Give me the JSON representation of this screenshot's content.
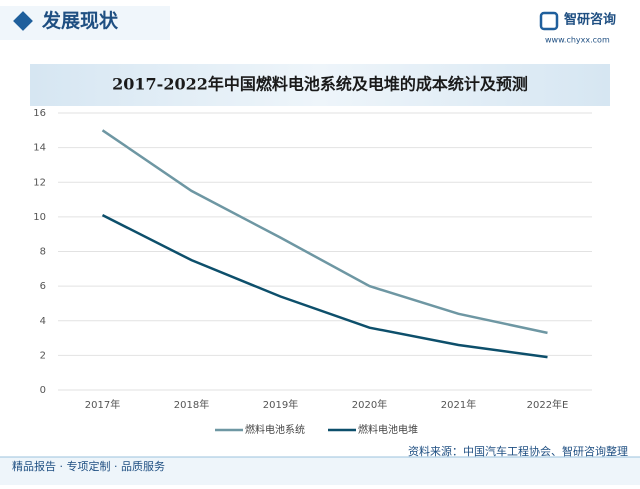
{
  "header": {
    "title": "发展现状",
    "brand": "智研咨询",
    "url": "www.chyxx.com"
  },
  "footer": {
    "slogan": "精品报告 · 专项定制 · 品质服务",
    "source": "资料来源：中国汽车工程协会、智研咨询整理"
  },
  "chart_data": {
    "type": "line",
    "title": "2017-2022年中国燃料电池系统及电堆的成本统计及预测",
    "categories": [
      "2017年",
      "2018年",
      "2019年",
      "2020年",
      "2021年",
      "2022年E"
    ],
    "series": [
      {
        "name": "燃料电池系统",
        "color": "#6e97a3",
        "values": [
          15,
          11.5,
          8.8,
          6,
          4.4,
          3.3
        ]
      },
      {
        "name": "燃料电池电堆",
        "color": "#0d4f6b",
        "values": [
          10.1,
          7.5,
          5.4,
          3.6,
          2.6,
          1.9
        ]
      }
    ],
    "ylim": [
      0,
      16
    ],
    "yticks": [
      0,
      2,
      4,
      6,
      8,
      10,
      12,
      14,
      16
    ],
    "grid": true,
    "legend": "bottom"
  }
}
